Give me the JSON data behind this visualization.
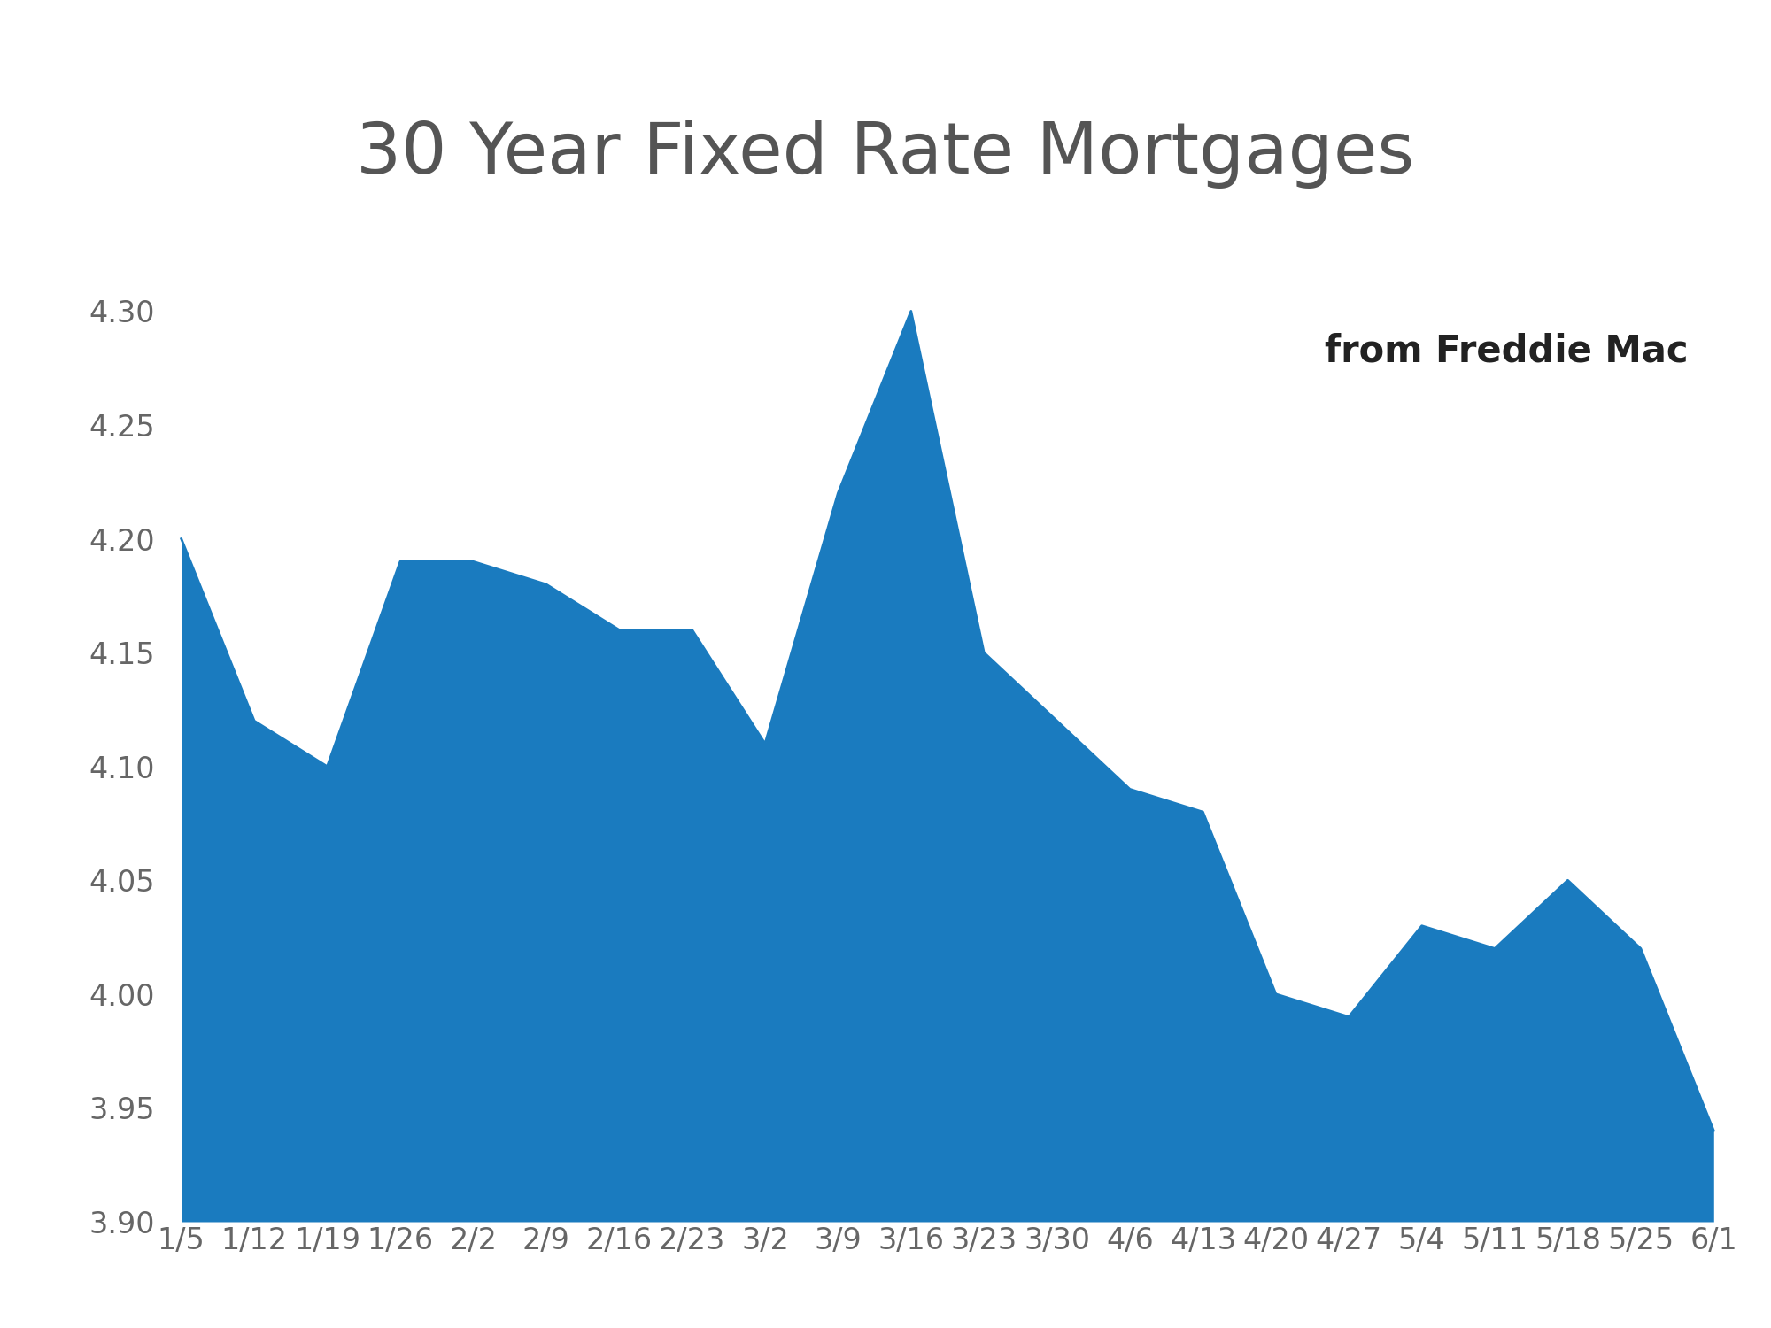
{
  "title": "30 Year Fixed Rate Mortgages",
  "subtitle": "from Freddie Mac",
  "fill_color": "#1a7bbf",
  "background_color": "#ffffff",
  "title_color": "#555555",
  "subtitle_color": "#222222",
  "tick_color": "#666666",
  "x_labels": [
    "1/5",
    "1/12",
    "1/19",
    "1/26",
    "2/2",
    "2/9",
    "2/16",
    "2/23",
    "3/2",
    "3/9",
    "3/16",
    "3/23",
    "3/30",
    "4/6",
    "4/13",
    "4/20",
    "4/27",
    "5/4",
    "5/11",
    "5/18",
    "5/25",
    "6/1"
  ],
  "y_values": [
    4.2,
    4.12,
    4.1,
    4.19,
    4.19,
    4.18,
    4.16,
    4.16,
    4.11,
    4.22,
    4.3,
    4.15,
    4.12,
    4.09,
    4.08,
    4.0,
    3.99,
    4.03,
    4.02,
    4.05,
    4.02,
    3.94
  ],
  "ylim": [
    3.9,
    4.32
  ],
  "yticks": [
    3.9,
    3.95,
    4.0,
    4.05,
    4.1,
    4.15,
    4.2,
    4.25,
    4.3
  ],
  "title_fontsize": 58,
  "subtitle_fontsize": 30,
  "tick_fontsize": 24
}
